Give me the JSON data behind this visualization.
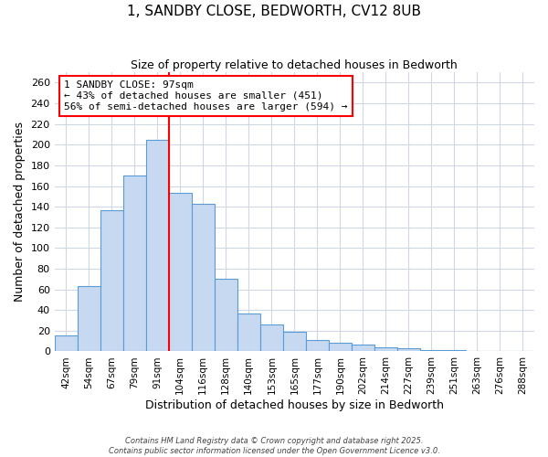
{
  "title": "1, SANDBY CLOSE, BEDWORTH, CV12 8UB",
  "subtitle": "Size of property relative to detached houses in Bedworth",
  "xlabel": "Distribution of detached houses by size in Bedworth",
  "ylabel": "Number of detached properties",
  "bar_labels": [
    "42sqm",
    "54sqm",
    "67sqm",
    "79sqm",
    "91sqm",
    "104sqm",
    "116sqm",
    "128sqm",
    "140sqm",
    "153sqm",
    "165sqm",
    "177sqm",
    "190sqm",
    "202sqm",
    "214sqm",
    "227sqm",
    "239sqm",
    "251sqm",
    "263sqm",
    "276sqm",
    "288sqm"
  ],
  "bar_values": [
    15,
    63,
    137,
    170,
    205,
    153,
    143,
    70,
    37,
    26,
    19,
    11,
    8,
    7,
    4,
    3,
    1,
    1,
    0,
    0,
    0
  ],
  "bar_color": "#c6d9f1",
  "bar_edgecolor": "#5b9bd5",
  "annotation_text": "1 SANDBY CLOSE: 97sqm\n← 43% of detached houses are smaller (451)\n56% of semi-detached houses are larger (594) →",
  "ylim": [
    0,
    270
  ],
  "yticks": [
    0,
    20,
    40,
    60,
    80,
    100,
    120,
    140,
    160,
    180,
    200,
    220,
    240,
    260
  ],
  "footer1": "Contains HM Land Registry data © Crown copyright and database right 2025.",
  "footer2": "Contains public sector information licensed under the Open Government Licence v3.0.",
  "bg_color": "#ffffff",
  "plot_bg_color": "#ffffff",
  "grid_color": "#d0d8e8",
  "title_fontsize": 11,
  "subtitle_fontsize": 9
}
